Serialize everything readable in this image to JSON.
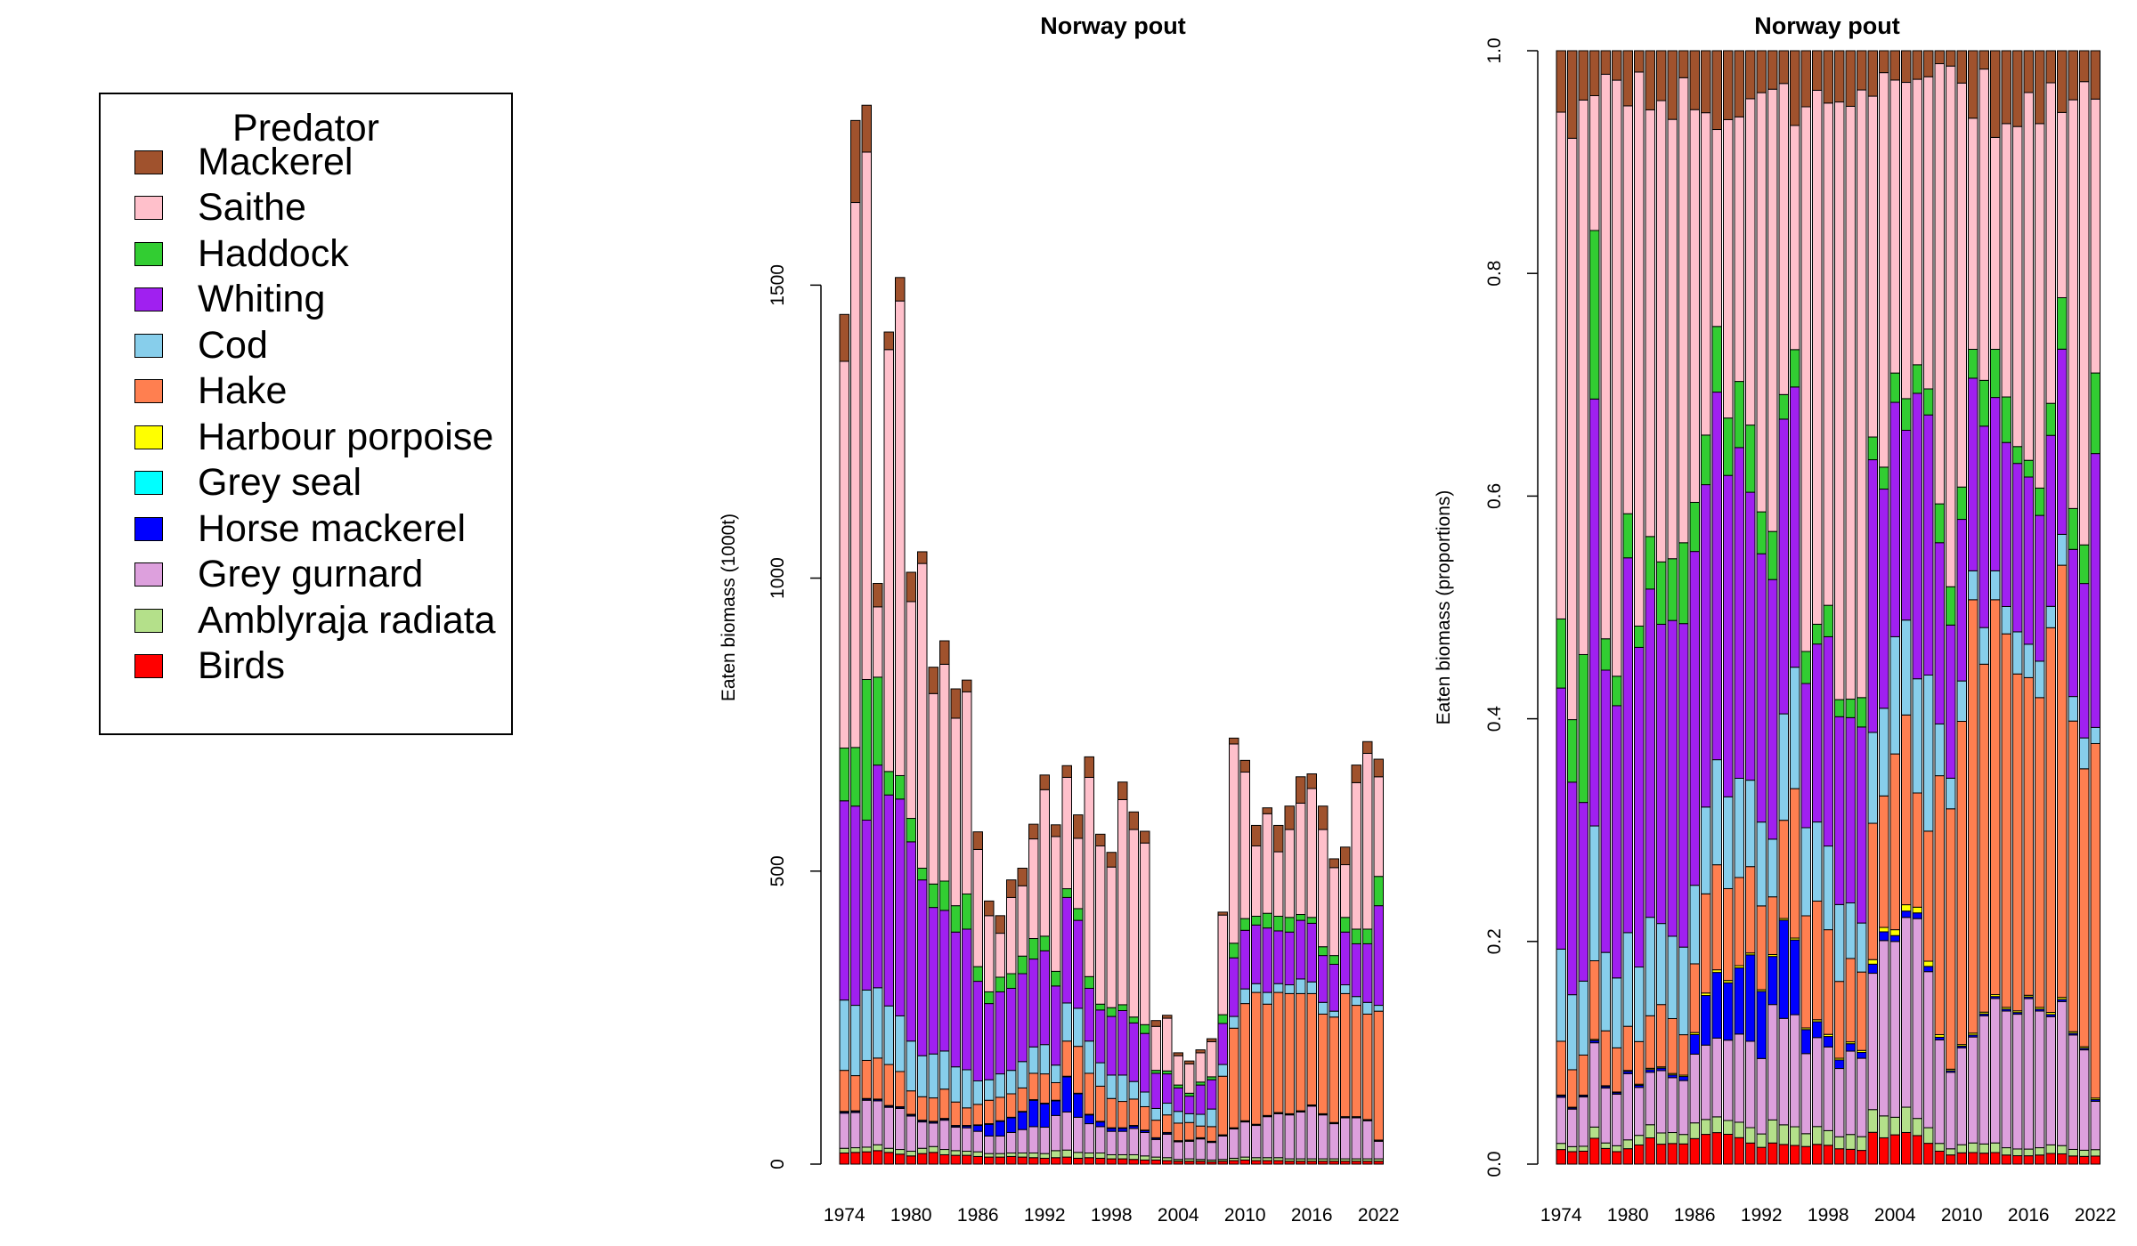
{
  "legend": {
    "title": "Predator",
    "items": [
      {
        "name": "Mackerel",
        "color": "#A0522D"
      },
      {
        "name": "Saithe",
        "color": "#FFC0CB"
      },
      {
        "name": "Haddock",
        "color": "#32CD32"
      },
      {
        "name": "Whiting",
        "color": "#A020F0"
      },
      {
        "name": "Cod",
        "color": "#87CEEB"
      },
      {
        "name": "Hake",
        "color": "#FF7F50"
      },
      {
        "name": "Harbour porpoise",
        "color": "#FFFF00"
      },
      {
        "name": "Grey seal",
        "color": "#00FFFF"
      },
      {
        "name": "Horse mackerel",
        "color": "#0000FF"
      },
      {
        "name": "Grey gurnard",
        "color": "#DDA0DD"
      },
      {
        "name": "Amblyraja radiata",
        "color": "#B4E08A"
      },
      {
        "name": "Birds",
        "color": "#FF0000"
      }
    ]
  },
  "chart_data": [
    {
      "type": "bar",
      "stacked": true,
      "title": "Norway pout",
      "ylabel": "Eaten biomass (1000t)",
      "xlabel": "",
      "ylim": [
        0,
        1900
      ],
      "yticks": [
        0,
        500,
        1000,
        1500
      ],
      "xtick_labels": [
        "1974",
        "1980",
        "1986",
        "1992",
        "1998",
        "2004",
        "2010",
        "2016",
        "2022"
      ],
      "stack_order_bottom_to_top": [
        "Birds",
        "Amblyraja radiata",
        "Grey gurnard",
        "Horse mackerel",
        "Grey seal",
        "Harbour porpoise",
        "Hake",
        "Cod",
        "Whiting",
        "Haddock",
        "Saithe",
        "Mackerel"
      ],
      "categories": [
        "1974",
        "1975",
        "1976",
        "1977",
        "1978",
        "1979",
        "1980",
        "1981",
        "1982",
        "1983",
        "1984",
        "1985",
        "1986",
        "1987",
        "1988",
        "1989",
        "1990",
        "1991",
        "1992",
        "1993",
        "1994",
        "1995",
        "1996",
        "1997",
        "1998",
        "1999",
        "2000",
        "2001",
        "2002",
        "2003",
        "2004",
        "2005",
        "2006",
        "2007",
        "2008",
        "2009",
        "2010",
        "2011",
        "2012",
        "2013",
        "2014",
        "2015",
        "2016",
        "2017",
        "2018",
        "2019",
        "2020",
        "2021",
        "2022"
      ],
      "series": [
        {
          "name": "Birds",
          "values": [
            19,
            20,
            21,
            23,
            20,
            17,
            14,
            18,
            20,
            16,
            15,
            15,
            13,
            12,
            12,
            13,
            12,
            11,
            10,
            11,
            12,
            10,
            11,
            10,
            9,
            9,
            8,
            7,
            7,
            6,
            5,
            5,
            5,
            4,
            5,
            6,
            7,
            6,
            6,
            6,
            5,
            5,
            5,
            5,
            5,
            5,
            5,
            5,
            5
          ]
        },
        {
          "name": "Amblyraja radiata",
          "values": [
            8,
            8,
            8,
            10,
            7,
            8,
            8,
            9,
            10,
            9,
            8,
            7,
            8,
            6,
            6,
            6,
            7,
            8,
            8,
            12,
            12,
            10,
            8,
            9,
            7,
            7,
            8,
            7,
            5,
            5,
            3,
            4,
            3,
            3,
            3,
            4,
            5,
            5,
            5,
            5,
            4,
            4,
            4,
            4,
            4,
            4,
            4,
            4,
            4
          ]
        },
        {
          "name": "Grey gurnard",
          "values": [
            60,
            60,
            80,
            75,
            70,
            70,
            60,
            45,
            40,
            50,
            40,
            40,
            35,
            30,
            30,
            35,
            40,
            45,
            45,
            60,
            65,
            60,
            50,
            45,
            40,
            40,
            45,
            40,
            30,
            40,
            30,
            30,
            35,
            30,
            40,
            50,
            60,
            55,
            70,
            75,
            75,
            80,
            90,
            75,
            60,
            70,
            70,
            65,
            30
          ]
        },
        {
          "name": "Horse mackerel",
          "values": [
            2,
            2,
            2,
            2,
            2,
            2,
            2,
            2,
            2,
            2,
            2,
            3,
            10,
            20,
            25,
            25,
            30,
            45,
            40,
            25,
            60,
            40,
            15,
            8,
            5,
            5,
            4,
            3,
            2,
            2,
            1,
            1,
            1,
            1,
            1,
            1,
            1,
            1,
            1,
            1,
            1,
            1,
            1,
            1,
            1,
            1,
            1,
            1,
            1
          ]
        },
        {
          "name": "Grey seal",
          "values": [
            0,
            0,
            0,
            0,
            0,
            0,
            0,
            0,
            0,
            0,
            0,
            0,
            0,
            0,
            0,
            0,
            0,
            0,
            0,
            0,
            0,
            0,
            0,
            0,
            0,
            0,
            0,
            0,
            0,
            0,
            0,
            0,
            0,
            0,
            0,
            0,
            0,
            0,
            0,
            0,
            0,
            0,
            0,
            0,
            0,
            0,
            0,
            0,
            0
          ]
        },
        {
          "name": "Harbour porpoise",
          "values": [
            1,
            1,
            1,
            1,
            1,
            1,
            1,
            1,
            1,
            1,
            1,
            1,
            1,
            1,
            1,
            1,
            1,
            1,
            1,
            1,
            1,
            1,
            1,
            1,
            1,
            1,
            1,
            1,
            1,
            1,
            1,
            1,
            1,
            1,
            1,
            1,
            1,
            1,
            1,
            1,
            1,
            1,
            1,
            1,
            1,
            1,
            1,
            1,
            1
          ]
        },
        {
          "name": "Hake",
          "values": [
            70,
            60,
            65,
            70,
            70,
            60,
            40,
            40,
            40,
            50,
            40,
            30,
            35,
            40,
            40,
            40,
            40,
            45,
            50,
            30,
            60,
            80,
            70,
            60,
            50,
            45,
            45,
            40,
            30,
            30,
            30,
            30,
            20,
            25,
            100,
            170,
            200,
            225,
            190,
            205,
            205,
            200,
            190,
            170,
            180,
            210,
            190,
            180,
            220
          ]
        },
        {
          "name": "Cod",
          "values": [
            120,
            120,
            120,
            120,
            100,
            95,
            85,
            70,
            75,
            65,
            60,
            65,
            40,
            35,
            40,
            40,
            45,
            45,
            50,
            30,
            65,
            65,
            55,
            40,
            40,
            45,
            30,
            25,
            20,
            20,
            20,
            15,
            20,
            30,
            20,
            20,
            25,
            15,
            20,
            15,
            15,
            25,
            20,
            20,
            10,
            15,
            15,
            20,
            10
          ]
        },
        {
          "name": "Whiting",
          "values": [
            340,
            340,
            290,
            380,
            360,
            370,
            340,
            300,
            250,
            240,
            230,
            240,
            170,
            130,
            140,
            140,
            150,
            150,
            160,
            135,
            180,
            150,
            90,
            90,
            100,
            110,
            100,
            100,
            60,
            50,
            40,
            30,
            50,
            50,
            70,
            100,
            100,
            100,
            110,
            90,
            90,
            100,
            100,
            80,
            80,
            90,
            90,
            100,
            170
          ]
        },
        {
          "name": "Haddock",
          "values": [
            90,
            100,
            240,
            150,
            40,
            40,
            40,
            20,
            40,
            50,
            45,
            60,
            25,
            20,
            25,
            25,
            30,
            35,
            25,
            25,
            15,
            20,
            20,
            10,
            15,
            10,
            10,
            15,
            5,
            5,
            5,
            5,
            5,
            5,
            15,
            25,
            20,
            15,
            25,
            25,
            25,
            10,
            10,
            15,
            15,
            25,
            25,
            25,
            50
          ]
        },
        {
          "name": "Saithe",
          "values": [
            660,
            930,
            900,
            120,
            720,
            810,
            370,
            520,
            325,
            370,
            320,
            345,
            200,
            130,
            75,
            130,
            120,
            170,
            250,
            230,
            190,
            120,
            340,
            270,
            240,
            350,
            320,
            310,
            75,
            90,
            50,
            50,
            50,
            60,
            170,
            340,
            250,
            120,
            170,
            110,
            150,
            190,
            220,
            200,
            150,
            90,
            250,
            300,
            170
          ]
        },
        {
          "name": "Mackerel",
          "values": [
            80,
            140,
            80,
            40,
            30,
            40,
            50,
            20,
            45,
            40,
            50,
            20,
            30,
            25,
            30,
            30,
            30,
            25,
            25,
            20,
            20,
            40,
            35,
            20,
            25,
            30,
            30,
            20,
            10,
            5,
            5,
            5,
            5,
            5,
            5,
            10,
            20,
            35,
            10,
            45,
            40,
            45,
            25,
            40,
            15,
            30,
            30,
            20,
            30
          ]
        }
      ]
    },
    {
      "type": "bar",
      "stacked": true,
      "title": "Norway pout",
      "ylabel": "Eaten biomass (proportions)",
      "xlabel": "",
      "ylim": [
        0,
        1
      ],
      "yticks": [
        "0.0",
        "0.2",
        "0.4",
        "0.6",
        "0.8",
        "1.0"
      ],
      "xtick_labels": [
        "1974",
        "1980",
        "1986",
        "1992",
        "1998",
        "2004",
        "2010",
        "2016",
        "2022"
      ],
      "note_source": "proportions of left chart stacks"
    }
  ]
}
